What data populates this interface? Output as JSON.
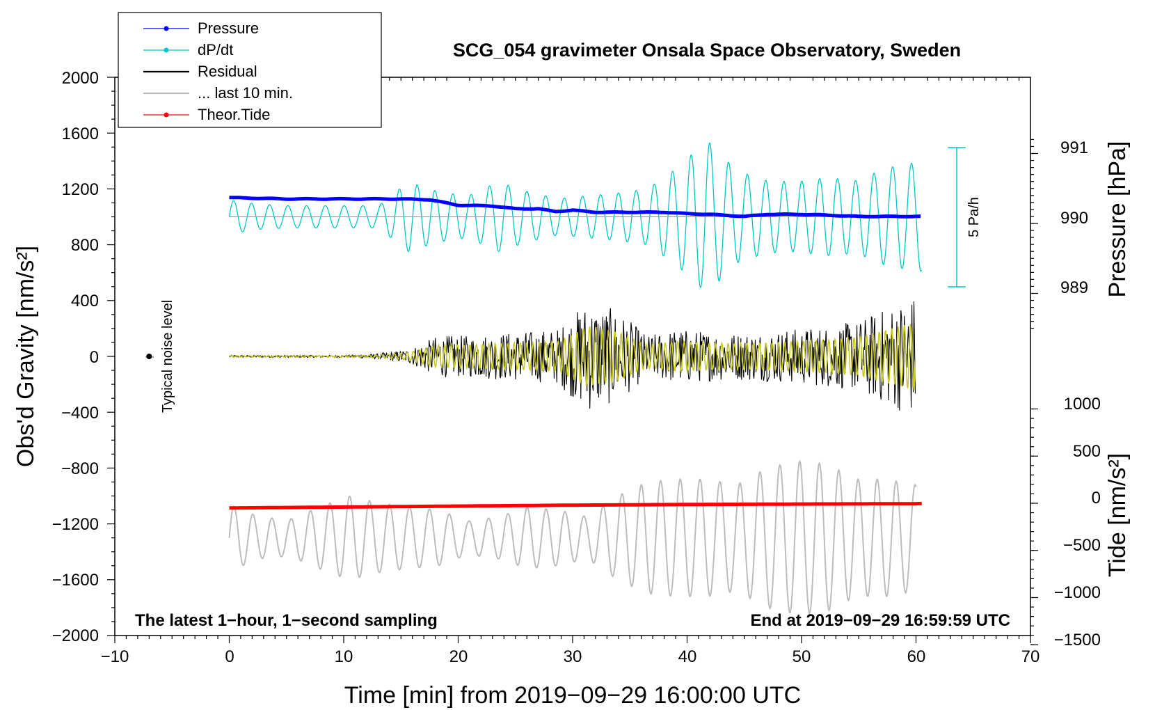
{
  "chart_data": {
    "type": "line",
    "title": "SCG_054 gravimeter Onsala Space Observatory, Sweden",
    "xlabel": "Time [min] from 2019−09−29 16:00:00 UTC",
    "ylabel_left": "Obs'd Gravity [nm/s²]",
    "ylabel_right_top": "Pressure [hPa]",
    "ylabel_right_bottom": "Tide [nm/s²]",
    "xlim": [
      -10,
      70
    ],
    "ylim_left": [
      -2000,
      2000
    ],
    "x_ticks": [
      "−10",
      "0",
      "10",
      "20",
      "30",
      "40",
      "50",
      "60",
      "70"
    ],
    "y_ticks_left": [
      "2000",
      "1600",
      "1200",
      "800",
      "400",
      "0",
      "−400",
      "−800",
      "−1200",
      "−1600",
      "−2000"
    ],
    "pressure_axis": {
      "ticks": [
        "991",
        "990",
        "989"
      ],
      "values": [
        991,
        990,
        989
      ]
    },
    "tide_axis": {
      "ticks": [
        "1000",
        "500",
        "0",
        "−500",
        "−1000",
        "−1500"
      ],
      "values": [
        1000,
        500,
        0,
        -500,
        -1000,
        -1500
      ]
    },
    "legend": [
      {
        "label": "Pressure",
        "color": "#0000ff",
        "marker": true
      },
      {
        "label": "dP/dt",
        "color": "#00c8c8",
        "marker": true
      },
      {
        "label": "Residual",
        "color": "#000000",
        "marker": false
      },
      {
        "label": "... last 10 min.",
        "color": "#bdbdbd",
        "marker": false
      },
      {
        "label": "Theor.Tide",
        "color": "#ff0000",
        "marker": true
      }
    ],
    "annotations": {
      "noise": "Typical noise level",
      "scale": "5 Pa/h",
      "left_note": "The latest 1−hour, 1−second sampling",
      "right_note": "End at 2019−09−29 16:59:59 UTC"
    },
    "series": [
      {
        "name": "Pressure",
        "unit": "hPa",
        "color": "#0000ff",
        "x": [
          0,
          5,
          10,
          15,
          17.5,
          20,
          23,
          25,
          27,
          28.5,
          30,
          32,
          35,
          38,
          40,
          42,
          45,
          47,
          50,
          52,
          55,
          57,
          58,
          60,
          60.5
        ],
        "values": [
          990.37,
          990.35,
          990.35,
          990.35,
          990.34,
          990.26,
          990.25,
          990.21,
          990.21,
          990.17,
          990.19,
          990.16,
          990.16,
          990.16,
          990.14,
          990.13,
          990.1,
          990.13,
          990.13,
          990.12,
          990.1,
          990.1,
          990.1,
          990.1,
          990.1
        ]
      },
      {
        "name": "dP/dt",
        "color": "#00c8c8",
        "baseline": 1000,
        "amplitude": [
          120,
          90,
          80,
          80,
          80,
          80,
          250,
          180,
          150,
          250,
          180,
          130,
          150,
          170,
          200,
          350,
          550,
          330,
          260,
          250,
          280,
          260,
          350,
          390
        ],
        "period_min": 1.6
      },
      {
        "name": "Residual",
        "color": "#000000",
        "amplitude": [
          8,
          8,
          8,
          8,
          8,
          20,
          50,
          150,
          150,
          170,
          180,
          200,
          400,
          330,
          150,
          200,
          180,
          170,
          180,
          200,
          220,
          250,
          350,
          450
        ]
      },
      {
        "name": "... last 10 min.",
        "color": "#bdbdbd",
        "baseline": -1300,
        "amplitude": [
          240,
          150,
          130,
          220,
          300,
          250,
          220,
          200,
          120,
          150,
          220,
          200,
          150,
          300,
          400,
          420,
          420,
          380,
          500,
          550,
          530,
          420,
          420,
          380
        ],
        "period_min": 1.7
      },
      {
        "name": "Theor.Tide",
        "unit": "nm/s²",
        "color": "#ff0000",
        "x": [
          0,
          10,
          20,
          30,
          40,
          50,
          60,
          60.5
        ],
        "values": [
          -50,
          -40,
          -30,
          -20,
          -13,
          -8,
          -5,
          -3
        ]
      }
    ],
    "noise_marker": {
      "x": -7,
      "y": 0
    }
  }
}
